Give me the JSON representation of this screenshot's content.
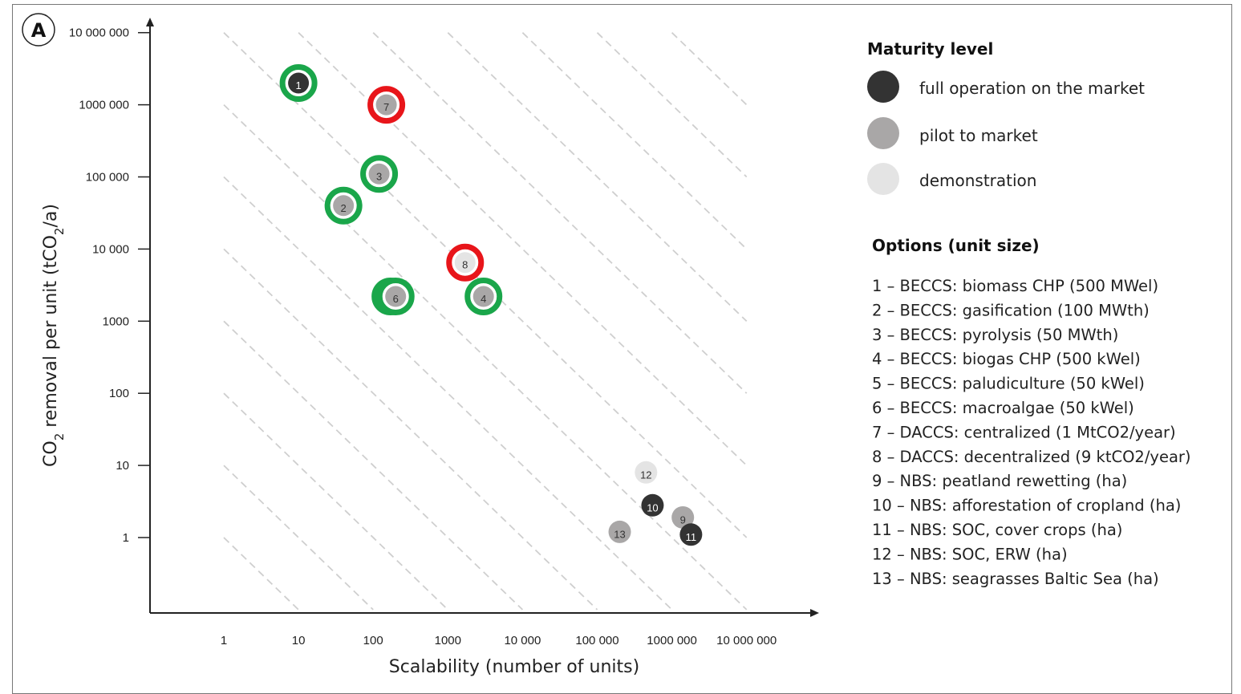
{
  "chart_data": {
    "type": "scatter",
    "panel_label": "A",
    "xlabel": "Scalability (number of units)",
    "ylabel_parts": [
      "CO",
      "2",
      " removal per unit (tCO",
      "2",
      "/a)"
    ],
    "x_scale": "log",
    "y_scale": "log",
    "x_ticks": [
      {
        "value": 1,
        "label": "1"
      },
      {
        "value": 10,
        "label": "10"
      },
      {
        "value": 100,
        "label": "100"
      },
      {
        "value": 1000,
        "label": "1000"
      },
      {
        "value": 10000,
        "label": "10 000"
      },
      {
        "value": 100000,
        "label": "100 000"
      },
      {
        "value": 1000000,
        "label": "1000 000"
      },
      {
        "value": 10000000,
        "label": "10 000 000"
      }
    ],
    "y_ticks": [
      {
        "value": 1,
        "label": "1"
      },
      {
        "value": 10,
        "label": "10"
      },
      {
        "value": 100,
        "label": "100"
      },
      {
        "value": 1000,
        "label": "1000"
      },
      {
        "value": 10000,
        "label": "10 000"
      },
      {
        "value": 100000,
        "label": "100 000"
      },
      {
        "value": 1000000,
        "label": "1000 000"
      },
      {
        "value": 10000000,
        "label": "10 000 000"
      }
    ],
    "xlim": [
      0.1,
      10000000
    ],
    "ylim": [
      0.01,
      10000000
    ],
    "reference_lines": "dashed diagonal lines of constant total removal",
    "grid": false,
    "legend_position": "right",
    "points": [
      {
        "id": "1",
        "x": 10,
        "y": 2000000,
        "maturity": "full operation on the market",
        "ring": "green"
      },
      {
        "id": "2",
        "x": 40,
        "y": 40000,
        "maturity": "pilot to market",
        "ring": "green"
      },
      {
        "id": "3",
        "x": 120,
        "y": 110000,
        "maturity": "pilot to market",
        "ring": "green"
      },
      {
        "id": "4",
        "x": 3000,
        "y": 2200,
        "maturity": "pilot to market",
        "ring": "green"
      },
      {
        "id": "5",
        "x": 170,
        "y": 2200,
        "maturity": "pilot to market",
        "ring": "green"
      },
      {
        "id": "6",
        "x": 200,
        "y": 2200,
        "maturity": "pilot to market",
        "ring": "green"
      },
      {
        "id": "7",
        "x": 150,
        "y": 1000000,
        "maturity": "pilot to market",
        "ring": "red"
      },
      {
        "id": "8",
        "x": 1700,
        "y": 6500,
        "maturity": "demonstration",
        "ring": "red"
      },
      {
        "id": "9",
        "x": 1400000,
        "y": 1.9,
        "maturity": "pilot to market",
        "ring": "none"
      },
      {
        "id": "10",
        "x": 550000,
        "y": 2.8,
        "maturity": "full operation on the market",
        "ring": "none"
      },
      {
        "id": "11",
        "x": 1800000,
        "y": 1.1,
        "maturity": "full operation on the market",
        "ring": "none"
      },
      {
        "id": "12",
        "x": 450000,
        "y": 8,
        "maturity": "demonstration",
        "ring": "none"
      },
      {
        "id": "13",
        "x": 200000,
        "y": 1.2,
        "maturity": "pilot to market",
        "ring": "none"
      }
    ],
    "maturity_legend": {
      "title": "Maturity level",
      "items": [
        {
          "label": "full operation on the market",
          "color": "#333333"
        },
        {
          "label": "pilot to market",
          "color": "#a9a7a7"
        },
        {
          "label": "demonstration",
          "color": "#e4e4e4"
        }
      ]
    },
    "options_legend": {
      "title": "Options (unit size)",
      "items": [
        "1 – BECCS: biomass CHP (500 MWel)",
        "2 – BECCS: gasification (100 MWth)",
        "3 – BECCS: pyrolysis (50 MWth)",
        "4 – BECCS: biogas CHP (500 kWel)",
        "5 – BECCS: paludiculture (50 kWel)",
        "6 – BECCS: macroalgae (50 kWel)",
        "7 – DACCS: centralized (1 MtCO2/year)",
        "8 – DACCS: decentralized (9 ktCO2/year)",
        "9 – NBS: peatland rewetting (ha)",
        "10 – NBS: afforestation of cropland (ha)",
        "11 – NBS: SOC, cover crops (ha)",
        "12 – NBS: SOC, ERW (ha)",
        "13 – NBS: seagrasses Baltic Sea (ha)"
      ]
    },
    "colors": {
      "ring_green": "#1aa64a",
      "ring_red": "#e8151a",
      "full_operation": "#333333",
      "pilot": "#a9a7a7",
      "demonstration": "#e4e4e4",
      "dash": "#cfcfcf"
    }
  }
}
